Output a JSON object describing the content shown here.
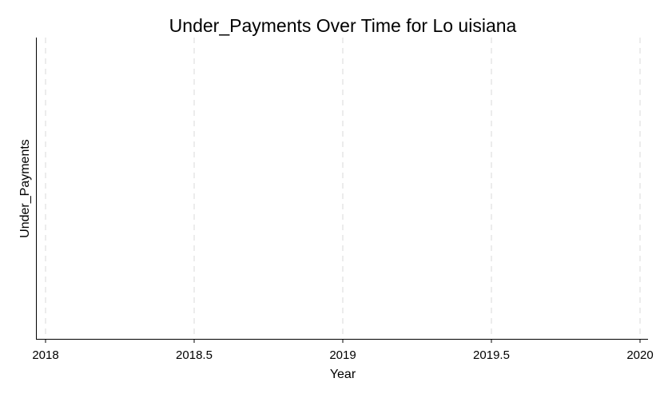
{
  "chart_data": {
    "type": "line",
    "title": "Under_Payments Over Time for Lo uisiana",
    "xlabel": "Year",
    "ylabel": "Under_Payments",
    "xlim": [
      2018,
      2020
    ],
    "xticks": [
      {
        "value": 2018,
        "label": "2018"
      },
      {
        "value": 2018.5,
        "label": "2018.5"
      },
      {
        "value": 2019,
        "label": "2019"
      },
      {
        "value": 2019.5,
        "label": "2019.5"
      },
      {
        "value": 2020,
        "label": "2020"
      }
    ],
    "yticks": [],
    "series": [],
    "grid": {
      "x": true,
      "y": false,
      "style": "dashed",
      "color": "#e6e6e6"
    },
    "colors": {
      "axis": "#000000",
      "grid": "#e6e6e6",
      "background": "#ffffff"
    }
  }
}
